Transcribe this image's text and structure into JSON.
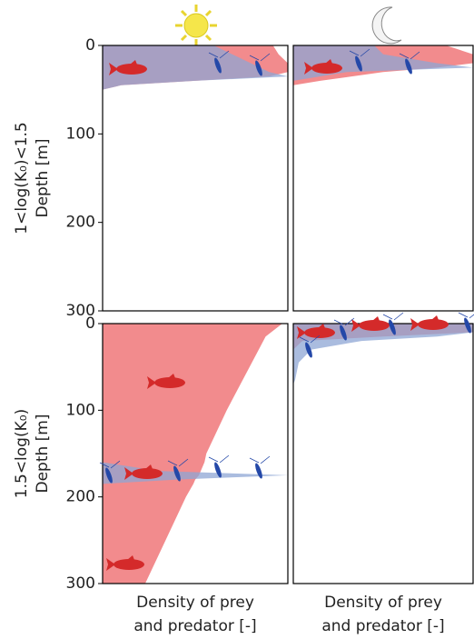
{
  "chart_data": [
    {
      "type": "area",
      "ylabel": [
        "1<log(K₀)<1.5",
        "Depth [m]"
      ],
      "ylim": [
        0,
        300
      ],
      "yticks": [
        0,
        100,
        200,
        300
      ],
      "xlim": [
        0,
        1
      ],
      "y": [
        0,
        10,
        20,
        30,
        35,
        40,
        45,
        50
      ],
      "series": [
        {
          "color": "#f28b8d",
          "values": [
            0.92,
            0.95,
            1,
            1,
            0.9,
            0.5,
            0.1,
            0
          ]
        },
        {
          "color": "#8ea6d4",
          "values": [
            0.6,
            0.7,
            0.8,
            0.9,
            1,
            0.5,
            0.1,
            0
          ]
        }
      ]
    },
    {
      "type": "area",
      "ylim": [
        0,
        300
      ],
      "xlim": [
        0,
        1
      ],
      "y": [
        0,
        10,
        20,
        25,
        30,
        40,
        45
      ],
      "series": [
        {
          "color": "#f28b8d",
          "values": [
            0.85,
            1,
            1,
            0.8,
            0.5,
            0.15,
            0
          ]
        },
        {
          "color": "#8ea6d4",
          "values": [
            0.45,
            0.5,
            0.8,
            1,
            0.3,
            0,
            0
          ]
        }
      ]
    },
    {
      "type": "area",
      "ylabel": [
        "1.5<log(K₀)",
        "Depth [m]"
      ],
      "xlabel": [
        "Density of prey",
        "and predator [-]"
      ],
      "ylim": [
        0,
        300
      ],
      "yticks": [
        0,
        100,
        200,
        300
      ],
      "xlim": [
        0,
        1
      ],
      "y": [
        0,
        15,
        100,
        150,
        160,
        170,
        175,
        180,
        185,
        200,
        250,
        300
      ],
      "series": [
        {
          "color": "#f28b8d",
          "values": [
            0.97,
            0.88,
            0.67,
            0.56,
            0.55,
            0.53,
            0.52,
            0.5,
            0.49,
            0.45,
            0.34,
            0.23
          ]
        },
        {
          "color": "#8ea6d4",
          "values": [
            0,
            0,
            0,
            0,
            0,
            0.3,
            1,
            0.4,
            0,
            0,
            0,
            0
          ]
        }
      ]
    },
    {
      "type": "area",
      "xlabel": [
        "Density of prey",
        "and predator [-]"
      ],
      "ylim": [
        0,
        300
      ],
      "xlim": [
        0,
        1
      ],
      "y": [
        0,
        5,
        10,
        15,
        20,
        30,
        45,
        65,
        70
      ],
      "series": [
        {
          "color": "#f28b8d",
          "values": [
            1,
            1,
            1,
            0.5,
            0.05,
            0,
            0,
            0,
            0
          ]
        },
        {
          "color": "#8ea6d4",
          "values": [
            1,
            1,
            1,
            0.8,
            0.38,
            0.1,
            0.03,
            0.01,
            0
          ]
        }
      ]
    }
  ]
}
